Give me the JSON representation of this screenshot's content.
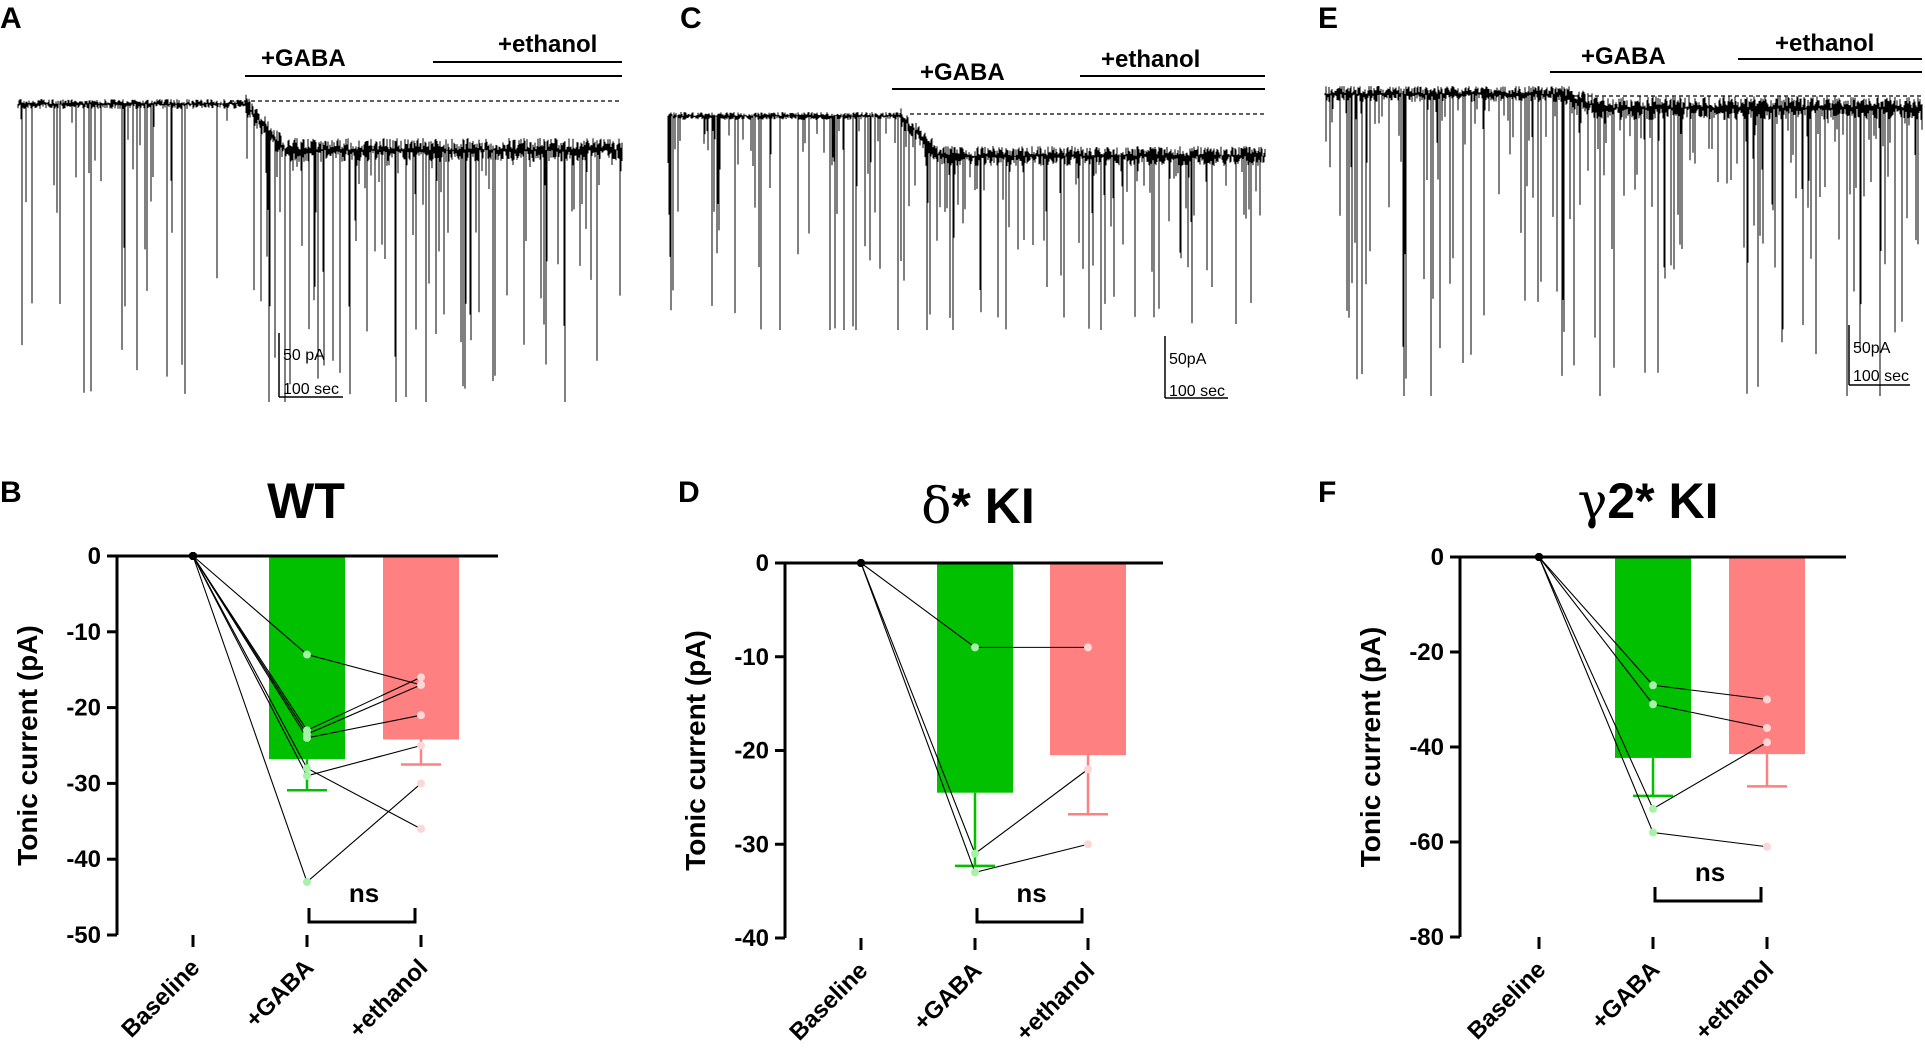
{
  "panels_top": [
    {
      "letter": "A",
      "gaba_label": "+GABA",
      "ethanol_label": "+ethanol",
      "scale_current": "50 pA",
      "scale_time": "100 sec"
    },
    {
      "letter": "C",
      "gaba_label": "+GABA",
      "ethanol_label": "+ethanol",
      "scale_current": "50pA",
      "scale_time": "100 sec"
    },
    {
      "letter": "E",
      "gaba_label": "+GABA",
      "ethanol_label": "+ethanol",
      "scale_current": "50pA",
      "scale_time": "100 sec"
    }
  ],
  "colors": {
    "gaba": "#00c000",
    "ethanol": "#ff8080",
    "gaba_point": "#a6f2a6",
    "ethanol_point": "#ffd6d6"
  },
  "chart_data": [
    {
      "letter": "B",
      "type": "bar",
      "title": "WT",
      "title_prefix": "",
      "title_greek": "",
      "categories": [
        "Baseline",
        "+GABA",
        "+ethanol"
      ],
      "means": [
        0,
        -26.8,
        -24.2
      ],
      "sem": [
        0,
        4.1,
        3.3
      ],
      "ylabel": "Tonic current (pA)",
      "ylim": [
        -50,
        0
      ],
      "yticks": [
        0,
        -10,
        -20,
        -30,
        -40,
        -50
      ],
      "paired": [
        [
          0,
          -13,
          -17
        ],
        [
          0,
          -23,
          -16
        ],
        [
          0,
          -24,
          -21
        ],
        [
          0,
          -23.5,
          -17
        ],
        [
          0,
          -29,
          -25
        ],
        [
          0,
          -43,
          -30
        ],
        [
          0,
          -28,
          -36
        ]
      ],
      "significance": "ns"
    },
    {
      "letter": "D",
      "type": "bar",
      "title": "* KI",
      "title_prefix": "",
      "title_greek": "δ",
      "categories": [
        "Baseline",
        "+GABA",
        "+ethanol"
      ],
      "means": [
        0,
        -24.5,
        -20.5
      ],
      "sem": [
        0,
        7.8,
        6.3
      ],
      "ylabel": "Tonic current (pA)",
      "ylim": [
        -40,
        0
      ],
      "yticks": [
        0,
        -10,
        -20,
        -30,
        -40
      ],
      "paired": [
        [
          0,
          -9,
          -9
        ],
        [
          0,
          -31,
          -22
        ],
        [
          0,
          -33,
          -30
        ]
      ],
      "significance": "ns"
    },
    {
      "letter": "F",
      "type": "bar",
      "title": "2* KI",
      "title_prefix": "",
      "title_greek": "γ",
      "categories": [
        "Baseline",
        "+GABA",
        "+ethanol"
      ],
      "means": [
        0,
        -42.3,
        -41.5
      ],
      "sem": [
        0,
        8.0,
        6.8
      ],
      "ylabel": "Tonic current (pA)",
      "ylim": [
        -80,
        0
      ],
      "yticks": [
        0,
        -20,
        -40,
        -60,
        -80
      ],
      "paired": [
        [
          0,
          -27,
          -30
        ],
        [
          0,
          -31,
          -36
        ],
        [
          0,
          -53,
          -39
        ],
        [
          0,
          -58,
          -61
        ]
      ],
      "significance": "ns"
    }
  ]
}
